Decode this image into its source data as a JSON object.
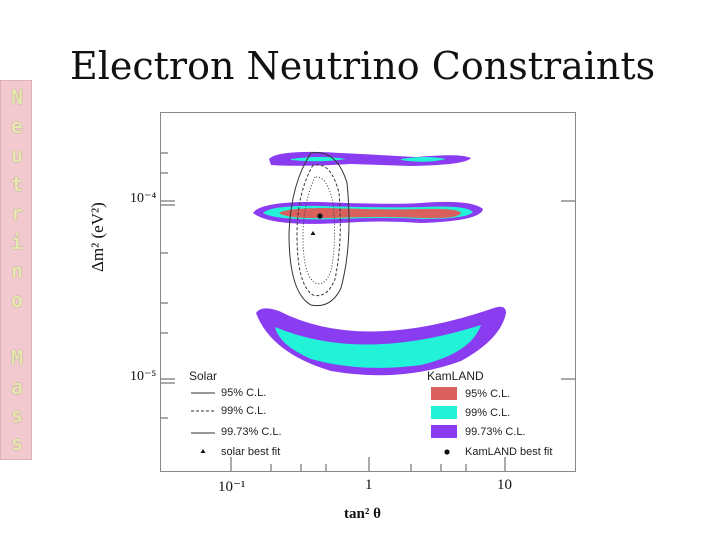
{
  "sidebar": {
    "letters": [
      "N",
      "e",
      "u",
      "t",
      "r",
      "i",
      "n",
      "o",
      "",
      "M",
      "a",
      "s",
      "s"
    ]
  },
  "title": "Electron Neutrino Constraints",
  "axes": {
    "y_label": "Δm² (eV²)",
    "y_ticks": [
      "10⁻⁴",
      "10⁻⁵"
    ],
    "x_label": "tan² θ",
    "x_ticks": [
      "10⁻¹",
      "1",
      "10"
    ]
  },
  "legend_solar": {
    "heading": "Solar",
    "items": [
      "95% C.L.",
      "99% C.L.",
      "99.73% C.L.",
      "solar best fit"
    ]
  },
  "legend_kamland": {
    "heading": "KamLAND",
    "items": [
      "95% C.L.",
      "99% C.L.",
      "99.73% C.L.",
      "KamLAND best fit"
    ]
  },
  "colors": {
    "kamland_95": "#d9605d",
    "kamland_99": "#22f2d8",
    "kamland_9973": "#8a3cf0",
    "sidebar_bg": "#f2c9cf"
  }
}
